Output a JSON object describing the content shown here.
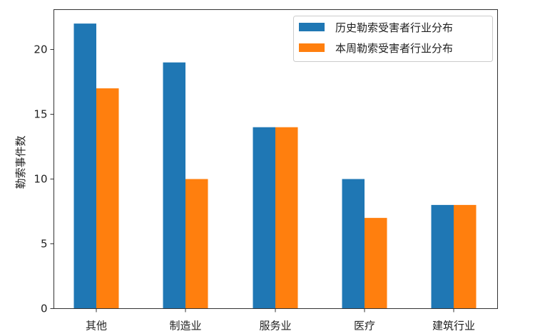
{
  "chart_data": {
    "type": "bar",
    "title": "",
    "xlabel": "",
    "ylabel": "勒索事件数",
    "categories": [
      "其他",
      "制造业",
      "服务业",
      "医疗",
      "建筑行业"
    ],
    "series": [
      {
        "name": "历史勒索受害者行业分布",
        "color": "#1f77b4",
        "values": [
          22,
          19,
          14,
          10,
          8
        ]
      },
      {
        "name": "本周勒索受害者行业分布",
        "color": "#ff7f0e",
        "values": [
          17,
          10,
          14,
          7,
          8
        ]
      }
    ],
    "ylim": [
      0,
      23.1
    ],
    "yticks": [
      0,
      5,
      10,
      15,
      20
    ],
    "grid": false,
    "legend_position": "upper right"
  }
}
